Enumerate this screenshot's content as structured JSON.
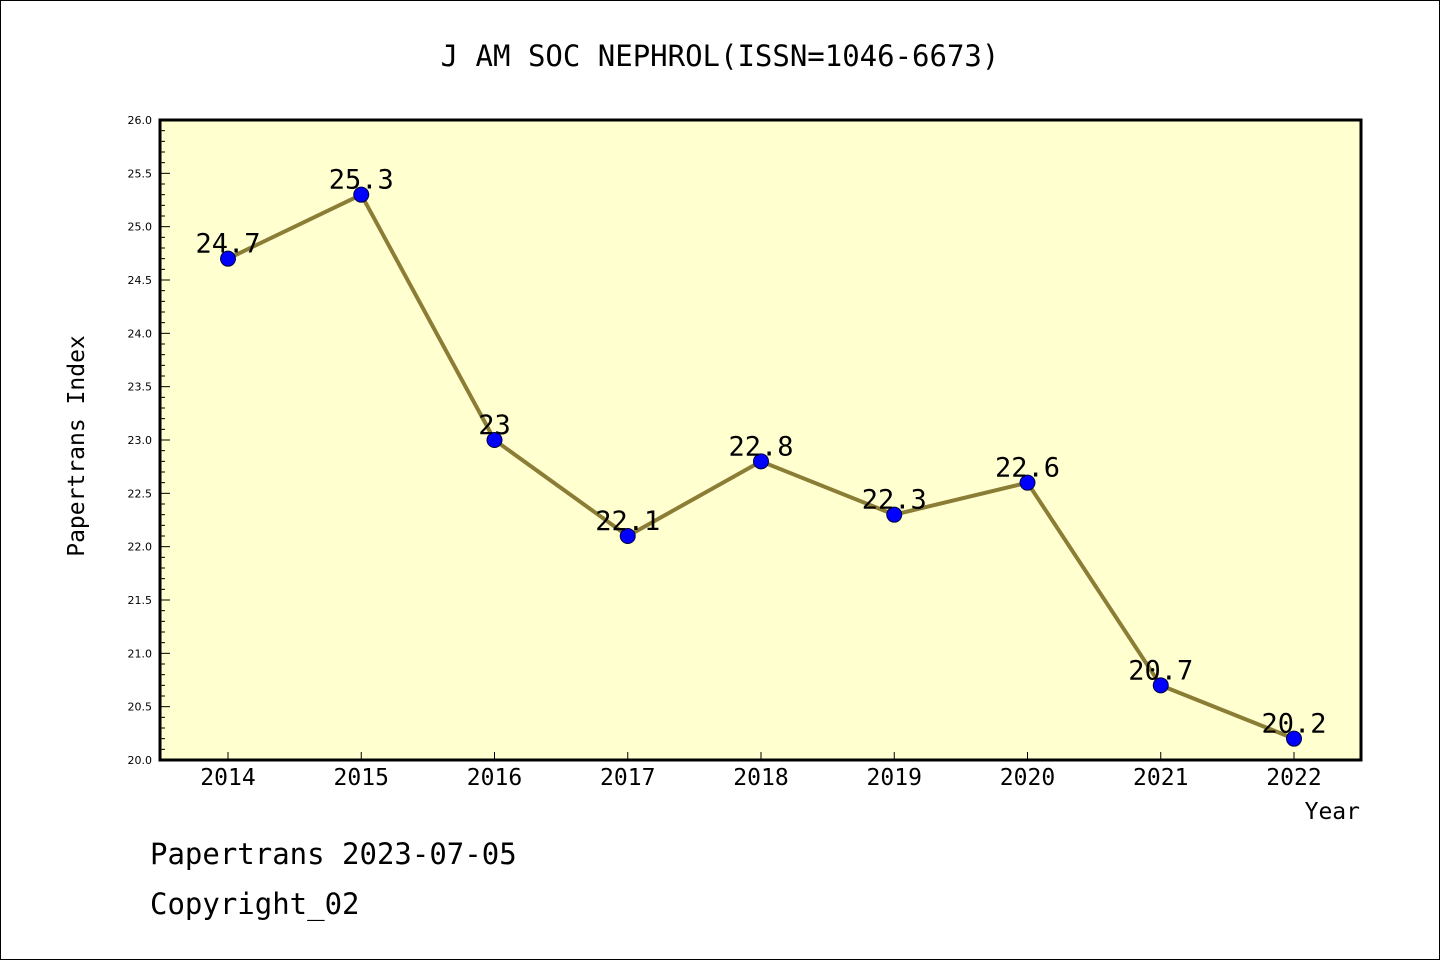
{
  "chart_data": {
    "type": "line",
    "title": "J AM SOC NEPHROL(ISSN=1046-6673)",
    "xlabel": "Year",
    "ylabel": "Papertrans Index",
    "categories": [
      "2014",
      "2015",
      "2016",
      "2017",
      "2018",
      "2019",
      "2020",
      "2021",
      "2022"
    ],
    "values": [
      24.7,
      25.3,
      23.0,
      22.1,
      22.8,
      22.3,
      22.6,
      20.7,
      20.2
    ],
    "data_labels": [
      "24.7",
      "25.3",
      "23",
      "22.1",
      "22.8",
      "22.3",
      "22.6",
      "20.7",
      "20.2"
    ],
    "ylim": [
      20.0,
      26.0
    ],
    "y_ticks": [
      "20.0",
      "20.5",
      "21.0",
      "21.5",
      "22.0",
      "22.5",
      "23.0",
      "23.5",
      "24.0",
      "24.5",
      "25.0",
      "25.5",
      "26.0"
    ],
    "grid": false,
    "legend": "none",
    "colors": {
      "plot_background": "#ffffd0",
      "line": "#8b7d35",
      "marker": "#0000ff"
    }
  },
  "footer": {
    "line1": "Papertrans 2023-07-05",
    "line2": "Copyright_02"
  }
}
